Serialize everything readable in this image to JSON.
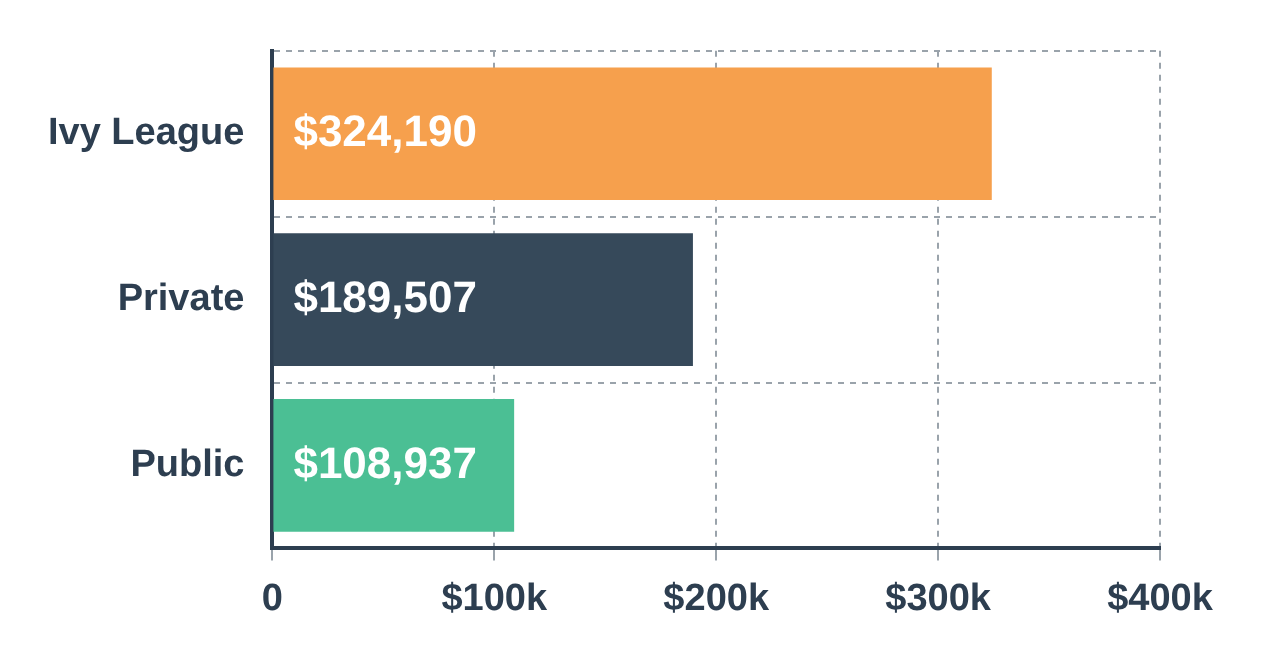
{
  "chart_data": {
    "type": "bar",
    "orientation": "horizontal",
    "categories": [
      "Ivy League",
      "Private",
      "Public"
    ],
    "values": [
      324190,
      189507,
      108937
    ],
    "colors": [
      "#f6a04d",
      "#36495a",
      "#4bbf94"
    ],
    "value_labels": [
      "$324,190",
      "$189,507",
      "$108,937"
    ],
    "xlim": [
      0,
      400000
    ],
    "xticks": [
      0,
      {
        "value": 100000,
        "label": "$100k"
      },
      {
        "value": 200000,
        "label": "$200k"
      },
      {
        "value": 300000,
        "label": "$300k"
      },
      {
        "value": 400000,
        "label": "$400k"
      }
    ],
    "grid": true,
    "legend": false
  }
}
